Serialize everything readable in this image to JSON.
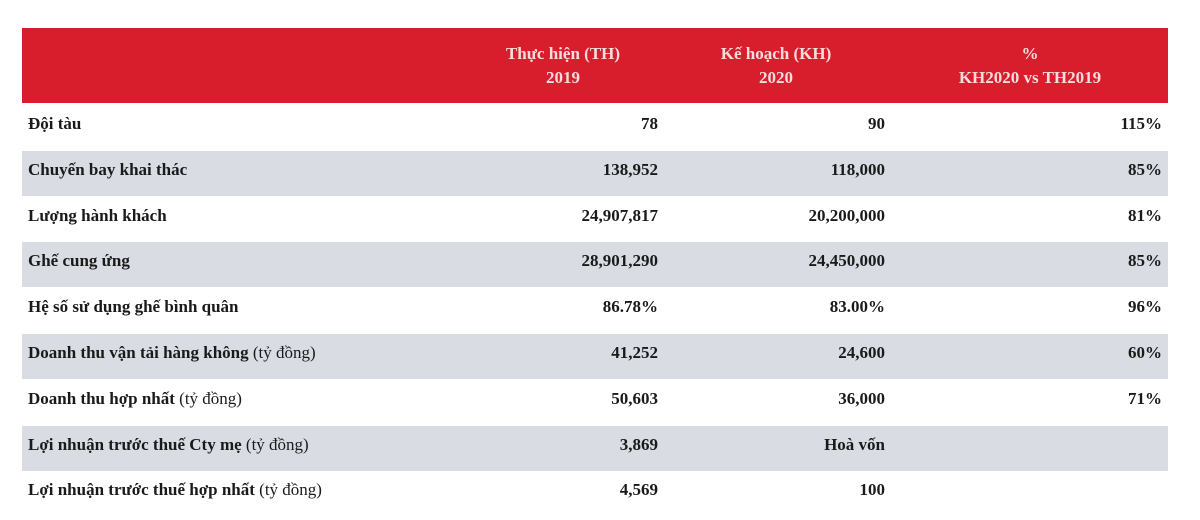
{
  "header": {
    "col1": {
      "line1": "Thực hiện (TH)",
      "line2": "2019"
    },
    "col2": {
      "line1": "Kế hoạch (KH)",
      "line2": "2020"
    },
    "col3": {
      "line1": "%",
      "line2": "KH2020 vs TH2019"
    }
  },
  "table": {
    "rows": [
      {
        "label": "Đội tàu",
        "th": "78",
        "kh": "90",
        "pct": "115%"
      },
      {
        "label": "Chuyến bay khai thác",
        "th": "138,952",
        "kh": "118,000",
        "pct": "85%"
      },
      {
        "label": "Lượng hành khách",
        "th": "24,907,817",
        "kh": "20,200,000",
        "pct": "81%"
      },
      {
        "label": "Ghế cung ứng",
        "th": "28,901,290",
        "kh": "24,450,000",
        "pct": "85%"
      },
      {
        "label": "Hệ số sử dụng ghế bình quân",
        "th": "86.78%",
        "kh": "83.00%",
        "pct": "96%"
      },
      {
        "label": "Doanh thu vận tải hàng không",
        "unit": "(tỷ đồng)",
        "th": "41,252",
        "kh": "24,600",
        "pct": "60%"
      },
      {
        "label": "Doanh thu hợp nhất",
        "unit": "(tỷ đồng)",
        "th": "50,603",
        "kh": "36,000",
        "pct": "71%"
      },
      {
        "label": "Lợi nhuận trước thuế Cty mẹ",
        "unit": "(tỷ đồng)",
        "th": "3,869",
        "kh": "Hoà vốn"
      },
      {
        "label": "Lợi nhuận trước thuế hợp nhất",
        "unit": "(tỷ đồng)",
        "th": "4,569",
        "kh": "100"
      }
    ]
  }
}
